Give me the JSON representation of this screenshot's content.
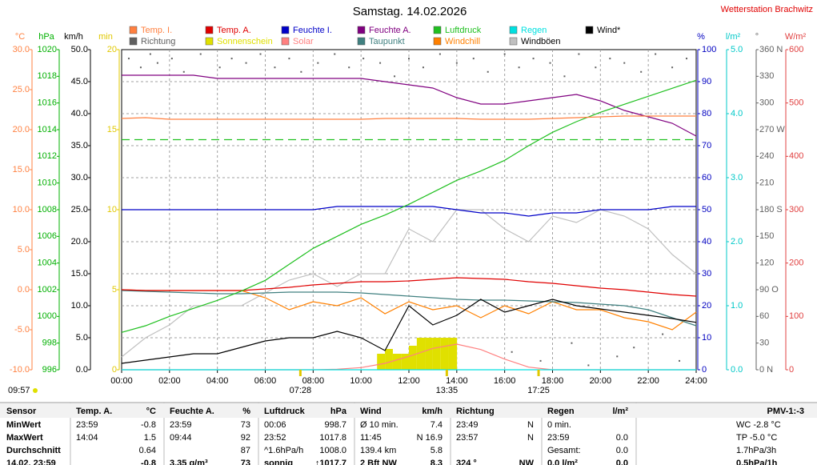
{
  "chart_data": {
    "type": "line",
    "title": "Samstag. 14.02.2026",
    "station": "Wetterstation Brachwitz",
    "xlim": [
      0,
      24
    ],
    "xticks": [
      {
        "value": 0,
        "label": "00:00"
      },
      {
        "value": 2,
        "label": "02:00"
      },
      {
        "value": 4,
        "label": "04:00"
      },
      {
        "value": 6,
        "label": "06:00"
      },
      {
        "value": 8,
        "label": "08:00"
      },
      {
        "value": 10,
        "label": "10:00"
      },
      {
        "value": 12,
        "label": "12:00"
      },
      {
        "value": 14,
        "label": "14:00"
      },
      {
        "value": 16,
        "label": "16:00"
      },
      {
        "value": 18,
        "label": "18:00"
      },
      {
        "value": 20,
        "label": "20:00"
      },
      {
        "value": 22,
        "label": "22:00"
      },
      {
        "value": 24,
        "label": "24:00"
      }
    ],
    "x": [
      0,
      1,
      2,
      3,
      4,
      5,
      6,
      7,
      8,
      9,
      10,
      11,
      12,
      13,
      14,
      15,
      16,
      17,
      18,
      19,
      20,
      21,
      22,
      23,
      24
    ],
    "grid": true,
    "axes": [
      {
        "id": "temp",
        "label": "°C",
        "color": "#ff8040",
        "lim": [
          -10,
          30
        ],
        "ticks": [
          {
            "value": -10,
            "label": "-10.0"
          },
          {
            "value": -5,
            "label": "-5.0"
          },
          {
            "value": 0,
            "label": "0.0"
          },
          {
            "value": 5,
            "label": "5.0"
          },
          {
            "value": 10,
            "label": "10.0"
          },
          {
            "value": 15,
            "label": "15.0"
          },
          {
            "value": 20,
            "label": "20.0"
          },
          {
            "value": 25,
            "label": "25.0"
          },
          {
            "value": 30,
            "label": "30.0"
          }
        ]
      },
      {
        "id": "hpa",
        "label": "hPa",
        "color": "#00b000",
        "lim": [
          996,
          1020
        ],
        "ticks": [
          996,
          998,
          1000,
          1002,
          1004,
          1006,
          1008,
          1010,
          1012,
          1014,
          1016,
          1018,
          1020
        ]
      },
      {
        "id": "kmh",
        "label": "km/h",
        "color": "#000000",
        "lim": [
          0,
          50
        ],
        "ticks": [
          {
            "value": 0,
            "label": "0.0"
          },
          {
            "value": 5,
            "label": "5.0"
          },
          {
            "value": 10,
            "label": "10.0"
          },
          {
            "value": 15,
            "label": "15.0"
          },
          {
            "value": 20,
            "label": "20.0"
          },
          {
            "value": 25,
            "label": "25.0"
          },
          {
            "value": 30,
            "label": "30.0"
          },
          {
            "value": 35,
            "label": "35.0"
          },
          {
            "value": 40,
            "label": "40.0"
          },
          {
            "value": 45,
            "label": "45.0"
          },
          {
            "value": 50,
            "label": "50.0"
          }
        ]
      },
      {
        "id": "min",
        "label": "min",
        "color": "#e0c800",
        "lim": [
          0,
          20
        ],
        "ticks": [
          0,
          5,
          10,
          15,
          20
        ]
      },
      {
        "id": "pct",
        "label": "%",
        "color": "#0000c0",
        "lim": [
          0,
          100
        ],
        "ticks": [
          0,
          10,
          20,
          30,
          40,
          50,
          60,
          70,
          80,
          90,
          100
        ]
      },
      {
        "id": "rain",
        "label": "l/m²",
        "color": "#00c8c8",
        "lim": [
          0,
          5
        ],
        "ticks": [
          {
            "value": 0,
            "label": "0.0"
          },
          {
            "value": 1,
            "label": "1.0"
          },
          {
            "value": 2,
            "label": "2.0"
          },
          {
            "value": 3,
            "label": "3.0"
          },
          {
            "value": 4,
            "label": "4.0"
          },
          {
            "value": 5,
            "label": "5.0"
          }
        ]
      },
      {
        "id": "deg",
        "label": "°",
        "color": "#606060",
        "lim": [
          0,
          360
        ],
        "ticks": [
          {
            "value": 0,
            "label": "0 N"
          },
          30,
          60,
          {
            "value": 90,
            "label": "90 O"
          },
          120,
          150,
          {
            "value": 180,
            "label": "180 S"
          },
          210,
          240,
          {
            "value": 270,
            "label": "270 W"
          },
          300,
          330,
          {
            "value": 360,
            "label": "360 N"
          }
        ]
      },
      {
        "id": "wm2",
        "label": "W/m²",
        "color": "#e04040",
        "lim": [
          0,
          600
        ],
        "ticks": [
          0,
          100,
          200,
          300,
          400,
          500,
          600
        ]
      }
    ],
    "reference_lines": [
      {
        "axis": "hpa",
        "value": 1013.25,
        "color": "#20c020"
      }
    ],
    "series": [
      {
        "name": "Temp. I.",
        "color": "#ff8040",
        "axis": "temp",
        "style": "line",
        "values": [
          21.4,
          21.5,
          21.3,
          21.3,
          21.3,
          21.3,
          21.3,
          21.3,
          21.3,
          21.3,
          21.3,
          21.4,
          21.4,
          21.4,
          21.4,
          21.3,
          21.3,
          21.3,
          21.4,
          21.5,
          21.6,
          21.7,
          21.7,
          21.7,
          21.7
        ]
      },
      {
        "name": "Temp. A.",
        "color": "#e00000",
        "axis": "temp",
        "style": "line",
        "values": [
          0.0,
          -0.1,
          -0.1,
          -0.1,
          -0.1,
          -0.1,
          0.1,
          0.3,
          0.6,
          0.8,
          1.0,
          1.0,
          1.1,
          1.3,
          1.5,
          1.4,
          1.3,
          1.0,
          0.8,
          0.5,
          0.2,
          0.0,
          -0.3,
          -0.6,
          -0.8
        ]
      },
      {
        "name": "Feuchte I.",
        "color": "#0000c8",
        "axis": "pct",
        "style": "line",
        "values": [
          50,
          50,
          50,
          50,
          50,
          50,
          50,
          50,
          50,
          51,
          51,
          51,
          51,
          51,
          50,
          49,
          49,
          48,
          49,
          49,
          50,
          50,
          50,
          51,
          51
        ]
      },
      {
        "name": "Feuchte A.",
        "color": "#800080",
        "axis": "pct",
        "style": "line",
        "values": [
          92,
          92,
          92,
          92,
          91,
          91,
          91,
          91,
          91,
          91,
          91,
          90,
          89,
          88,
          85,
          83,
          83,
          84,
          85,
          86,
          84,
          81,
          79,
          77,
          73
        ]
      },
      {
        "name": "Luftdruck",
        "color": "#20c020",
        "axis": "hpa",
        "style": "line",
        "values": [
          998.8,
          999.3,
          1000.0,
          1000.6,
          1001.2,
          1001.9,
          1002.7,
          1003.9,
          1005.1,
          1006.0,
          1006.9,
          1007.6,
          1008.4,
          1009.3,
          1010.2,
          1010.9,
          1011.7,
          1012.8,
          1013.8,
          1014.6,
          1015.3,
          1015.9,
          1016.5,
          1017.1,
          1017.7
        ]
      },
      {
        "name": "Regen",
        "color": "#00e0e0",
        "axis": "rain",
        "style": "line",
        "values": [
          0,
          0,
          0,
          0,
          0,
          0,
          0,
          0,
          0,
          0,
          0,
          0,
          0,
          0,
          0,
          0,
          0,
          0,
          0,
          0,
          0,
          0,
          0,
          0,
          0
        ]
      },
      {
        "name": "Wind*",
        "color": "#000000",
        "axis": "kmh",
        "style": "line",
        "values": [
          1.0,
          1.5,
          2.0,
          2.5,
          2.5,
          3.5,
          4.5,
          5.0,
          5.0,
          6.0,
          5.0,
          3.0,
          10.0,
          7.0,
          8.5,
          11.0,
          9.0,
          10.0,
          11.0,
          10.0,
          9.5,
          9.0,
          8.5,
          8.0,
          7.4
        ]
      },
      {
        "name": "Richtung",
        "color": "#606060",
        "axis": "deg",
        "style": "dots",
        "x": [
          0.3,
          0.8,
          1.2,
          1.5,
          2.1,
          2.6,
          3.3,
          4.1,
          4.6,
          5.2,
          5.8,
          6.4,
          7.0,
          7.5,
          8.2,
          8.9,
          9.5,
          10.1,
          10.8,
          11.4,
          12.0,
          12.6,
          13.3,
          14.0,
          14.7,
          15.3,
          16.0,
          16.6,
          17.2,
          17.9,
          18.5,
          19.1,
          19.8,
          20.4,
          21.0,
          21.7,
          22.3,
          23.0,
          23.6,
          16.3,
          17.5,
          18.8,
          19.5,
          20.7,
          21.4,
          22.6,
          23.3
        ],
        "values": [
          350,
          340,
          355,
          345,
          350,
          335,
          355,
          340,
          350,
          345,
          355,
          340,
          350,
          335,
          345,
          355,
          340,
          350,
          345,
          330,
          350,
          340,
          355,
          345,
          350,
          335,
          355,
          340,
          350,
          345,
          330,
          355,
          340,
          350,
          345,
          335,
          355,
          340,
          350,
          20,
          10,
          30,
          5,
          15,
          25,
          40,
          10
        ]
      },
      {
        "name": "Sonnenschein",
        "color": "#e0e000",
        "axis": "min",
        "style": "bars",
        "x": [
          10.67,
          11.0,
          11.33,
          11.67,
          12.0,
          12.33,
          12.67,
          13.0,
          13.33,
          13.67
        ],
        "values": [
          1.0,
          1.3,
          1.0,
          1.0,
          1.5,
          2.0,
          2.0,
          2.0,
          2.0,
          2.0
        ]
      },
      {
        "name": "Solar",
        "color": "#ff8080",
        "axis": "wm2",
        "style": "line",
        "values": [
          0,
          0,
          0,
          0,
          0,
          0,
          0,
          0,
          0,
          1,
          4,
          12,
          25,
          40,
          48,
          38,
          20,
          5,
          0,
          0,
          0,
          0,
          0,
          0,
          0
        ]
      },
      {
        "name": "Taupunkt",
        "color": "#408080",
        "axis": "temp",
        "style": "line",
        "values": [
          -0.1,
          -0.2,
          -0.3,
          -0.4,
          -0.5,
          -0.5,
          -0.4,
          -0.3,
          -0.3,
          -0.3,
          -0.4,
          -0.6,
          -0.8,
          -1.0,
          -1.2,
          -1.3,
          -1.3,
          -1.4,
          -1.5,
          -1.6,
          -1.8,
          -2.0,
          -2.5,
          -3.5,
          -4.5
        ]
      },
      {
        "name": "Windchill",
        "color": "#ff8000",
        "axis": "temp",
        "style": "line",
        "values": [
          0.0,
          -0.1,
          -0.1,
          -0.1,
          -0.1,
          -0.1,
          -1.0,
          -2.5,
          -1.5,
          -2.0,
          -1.0,
          -3.0,
          -1.5,
          -2.5,
          -2.0,
          -3.5,
          -2.0,
          -3.0,
          -1.5,
          -2.5,
          -2.5,
          -3.5,
          -4.0,
          -5.0,
          -2.8
        ]
      },
      {
        "name": "Windböen",
        "color": "#c0c0c0",
        "axis": "kmh",
        "style": "line",
        "values": [
          2,
          5,
          7,
          10,
          10,
          10,
          12,
          14,
          15,
          13,
          15,
          15,
          22,
          20,
          25,
          25,
          22,
          20,
          24,
          23,
          25,
          24,
          22,
          18,
          15
        ]
      }
    ],
    "draw_order": [
      12,
      8,
      9,
      7,
      11,
      10,
      1,
      6,
      2,
      3,
      5,
      4,
      0
    ],
    "day_length": "09:57",
    "markers": [
      {
        "x": 7.4667,
        "label": "07:28"
      },
      {
        "x": 13.5833,
        "label": "13:35"
      },
      {
        "x": 17.4167,
        "label": "17:25"
      }
    ]
  },
  "table": {
    "header": [
      [
        "Sensor"
      ],
      [
        "Temp. A.",
        "°C"
      ],
      [
        "Feuchte A.",
        "%"
      ],
      [
        "Luftdruck",
        "hPa"
      ],
      [
        "Wind",
        "km/h"
      ],
      [
        "Richtung"
      ],
      [
        "Regen",
        "l/m²"
      ],
      [
        "PMV-1:-3"
      ]
    ],
    "rows": [
      [
        [
          "MinWert"
        ],
        [
          "23:59",
          "-0.8"
        ],
        [
          "23:59",
          "73"
        ],
        [
          "00:06",
          "998.7"
        ],
        [
          "Ø 10 min.",
          "7.4"
        ],
        [
          "23:49",
          "N"
        ],
        [
          "0 min."
        ],
        [
          "WC -2.8 °C"
        ]
      ],
      [
        [
          "MaxWert"
        ],
        [
          "14:04",
          "1.5"
        ],
        [
          "09:44",
          "92"
        ],
        [
          "23:52",
          "1017.8"
        ],
        [
          "11:45",
          "N 16.9"
        ],
        [
          "23:57",
          "N"
        ],
        [
          "23:59",
          "0.0"
        ],
        [
          "TP -5.0 °C"
        ]
      ],
      [
        [
          "Durchschnitt"
        ],
        [
          null,
          "0.64"
        ],
        [
          null,
          "87"
        ],
        [
          "^1.6hPa/h",
          "1008.0"
        ],
        [
          "139.4 km",
          "5.8"
        ],
        [],
        [
          "Gesamt:",
          "0.0"
        ],
        [
          "1.7hPa/3h"
        ]
      ],
      [
        [
          "14.02. 23:59"
        ],
        [
          null,
          "-0.8"
        ],
        [
          "3.35 g/m³",
          "73"
        ],
        [
          "sonnig",
          "↑1017.7"
        ],
        [
          "2 Bft NW",
          "8.3"
        ],
        [
          "324 °",
          "NW"
        ],
        [
          "0.0 l/m²",
          "0.0"
        ],
        [
          "0.5hPa/1h"
        ]
      ]
    ]
  }
}
